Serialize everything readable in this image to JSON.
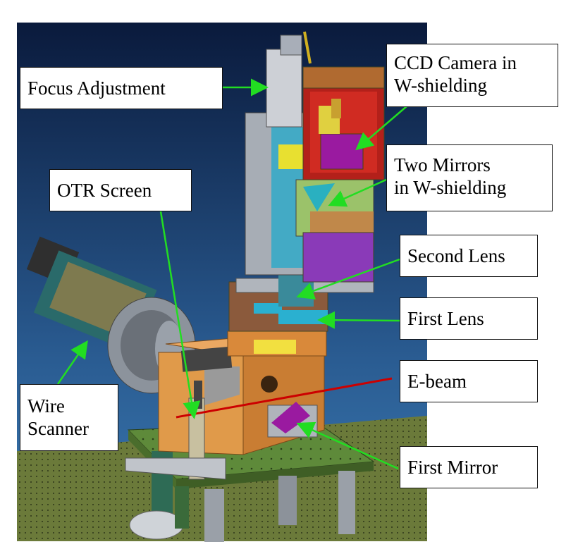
{
  "labels": {
    "focus_adjustment": "Focus Adjustment",
    "ccd_camera": "CCD Camera in\nW-shielding",
    "two_mirrors": "Two Mirrors\nin W-shielding",
    "otr_screen": "OTR Screen",
    "second_lens": "Second Lens",
    "first_lens": "First Lens",
    "e_beam": "E-beam",
    "wire_scanner": "Wire\nScanner",
    "first_mirror": "First Mirror"
  },
  "colors": {
    "background_top": "#0a1a3c",
    "background_bottom": "#3a78b0",
    "pointer": "#22dd22",
    "beam": "#cc0000",
    "copper": "#d9893a",
    "table": "#5e8a3a",
    "floor": "#6b7a3a"
  }
}
